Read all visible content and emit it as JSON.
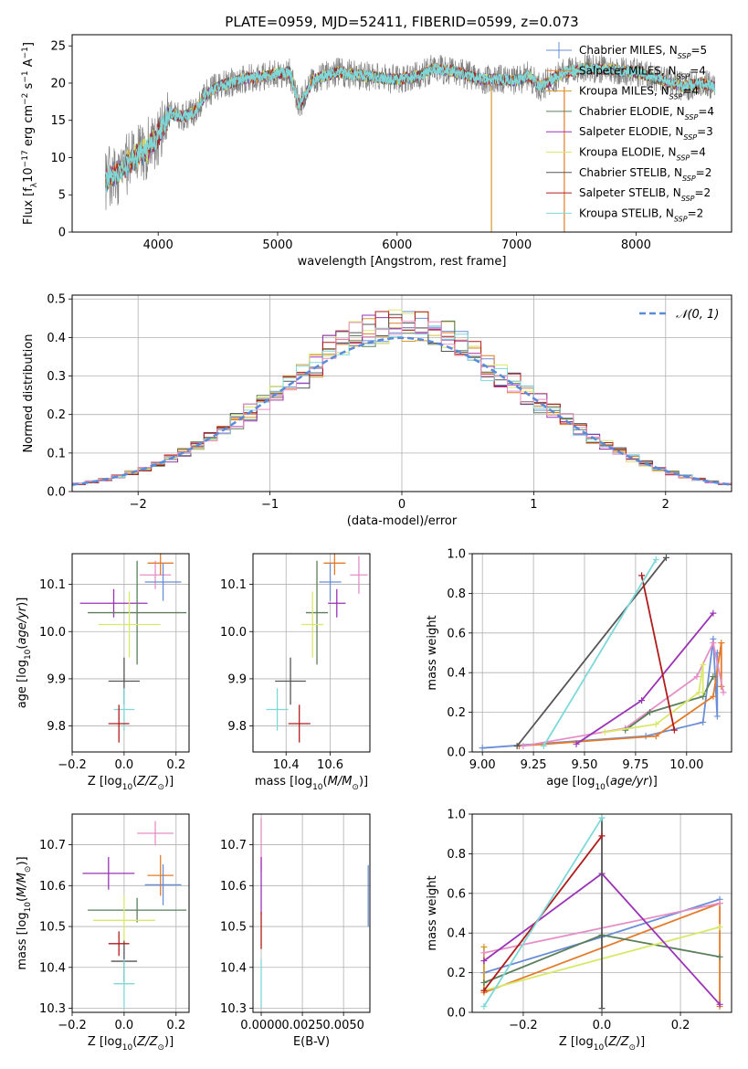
{
  "title": "PLATE=0959, MJD=52411, FIBERID=0599, z=0.073",
  "colors": {
    "Chabrier MILES": "#6a8ed6",
    "Salpeter MILES": "#e37b2a",
    "Kroupa MILES": "#d49a2a",
    "Chabrier ELODIE": "#5a7f5a",
    "Salpeter ELODIE": "#9a33b5",
    "Kroupa ELODIE": "#d8e86a",
    "Chabrier STELIB": "#555555",
    "Salpeter STELIB": "#b01c1c",
    "Kroupa STELIB": "#7fd8d8",
    "pink": "#e58fc6",
    "gaussian": "#5b8ad9"
  },
  "chart_data": [
    {
      "id": "spectrum",
      "type": "line",
      "xlabel": "wavelength [Angstrom, rest frame]",
      "ylabel": "Flux [f_λ 10^-17 erg cm^-2 s^-1 A^-1]",
      "xlim": [
        3280,
        8800
      ],
      "ylim": [
        0,
        26.5
      ],
      "xticks": [
        4000,
        5000,
        6000,
        7000,
        8000
      ],
      "yticks": [
        0,
        5,
        10,
        15,
        20,
        25
      ],
      "continuum_x": [
        3560,
        3700,
        3800,
        3900,
        4000,
        4100,
        4200,
        4300,
        4400,
        4500,
        4700,
        4900,
        5100,
        5180,
        5300,
        5500,
        5800,
        6000,
        6200,
        6300,
        6500,
        6700,
        6850,
        7000,
        7100,
        7200,
        7400,
        7600,
        7800,
        8000,
        8200,
        8400,
        8550,
        8660
      ],
      "continuum_y": [
        7,
        8.5,
        10,
        11,
        13,
        16,
        15.5,
        16,
        18.5,
        19.5,
        20.5,
        21,
        21.5,
        17,
        20.5,
        21.5,
        20.8,
        20.5,
        21,
        22,
        21.5,
        20.5,
        20.5,
        20.3,
        21,
        19.5,
        21.5,
        22,
        21.8,
        21.5,
        20.5,
        19.5,
        20,
        19.5
      ],
      "legend": [
        {
          "label": "Chabrier MILES",
          "n": 5
        },
        {
          "label": "Salpeter MILES",
          "n": 4
        },
        {
          "label": "Kroupa MILES",
          "n": 4
        },
        {
          "label": "Chabrier ELODIE",
          "n": 4
        },
        {
          "label": "Salpeter ELODIE",
          "n": 3
        },
        {
          "label": "Kroupa ELODIE",
          "n": 4
        },
        {
          "label": "Chabrier STELIB",
          "n": 2
        },
        {
          "label": "Salpeter STELIB",
          "n": 2
        },
        {
          "label": "Kroupa STELIB",
          "n": 2
        }
      ],
      "legend_placement": "upper-right"
    },
    {
      "id": "residuals",
      "type": "line",
      "xlabel": "(data-model)/error",
      "ylabel": "Normed distribution",
      "xlim": [
        -2.5,
        2.5
      ],
      "ylim": [
        0,
        0.51
      ],
      "xticks": [
        -2,
        -1,
        0,
        1,
        2
      ],
      "yticks": [
        0.0,
        0.1,
        0.2,
        0.3,
        0.4,
        0.5
      ],
      "grid": true,
      "bin_width": 0.1,
      "gaussian_label": "𝒩(0, 1)",
      "legend_placement": "upper-right"
    },
    {
      "id": "age_vs_Z",
      "type": "scatter",
      "xlabel": "Z [log10(Z/Z⊙)]",
      "ylabel": "age [log10(age/yr)]",
      "xlim": [
        -0.2,
        0.25
      ],
      "ylim": [
        9.745,
        10.165
      ],
      "xticks": [
        -0.2,
        0.0,
        0.2
      ],
      "yticks": [
        9.8,
        9.9,
        10.0,
        10.1
      ],
      "grid": true,
      "points": [
        {
          "model": "Salpeter ELODIE",
          "x": -0.04,
          "y": 10.06,
          "xerr": 0.13,
          "yerr": 0.03
        },
        {
          "model": "Chabrier ELODIE",
          "x": 0.05,
          "y": 10.04,
          "xerr": 0.19,
          "yerr": 0.11
        },
        {
          "model": "Kroupa ELODIE",
          "x": 0.02,
          "y": 10.015,
          "xerr": 0.12,
          "yerr": 0.07
        },
        {
          "model": "Chabrier STELIB",
          "x": 0.0,
          "y": 9.895,
          "xerr": 0.06,
          "yerr": 0.05
        },
        {
          "model": "Kroupa STELIB",
          "x": 0.0,
          "y": 9.835,
          "xerr": 0.04,
          "yerr": 0.045
        },
        {
          "model": "Salpeter STELIB",
          "x": -0.02,
          "y": 9.805,
          "xerr": 0.04,
          "yerr": 0.04
        },
        {
          "model": "pink",
          "x": 0.12,
          "y": 10.12,
          "xerr": 0.06,
          "yerr": 0.03
        },
        {
          "model": "Salpeter MILES",
          "x": 0.14,
          "y": 10.145,
          "xerr": 0.05,
          "yerr": 0.025
        },
        {
          "model": "Chabrier MILES",
          "x": 0.15,
          "y": 10.105,
          "xerr": 0.07,
          "yerr": 0.04
        }
      ]
    },
    {
      "id": "age_vs_mass",
      "type": "scatter",
      "xlabel": "mass [log10(M/M⊙)]",
      "ylabel": "",
      "xlim": [
        10.25,
        10.78
      ],
      "ylim": [
        9.745,
        10.165
      ],
      "xticks": [
        10.4,
        10.6
      ],
      "yticks": [
        9.8,
        9.9,
        10.0,
        10.1
      ],
      "grid": true,
      "points": [
        {
          "model": "Salpeter ELODIE",
          "x": 10.63,
          "y": 10.06,
          "xerr": 0.04,
          "yerr": 0.03
        },
        {
          "model": "Chabrier ELODIE",
          "x": 10.54,
          "y": 10.04,
          "xerr": 0.05,
          "yerr": 0.11
        },
        {
          "model": "Kroupa ELODIE",
          "x": 10.52,
          "y": 10.015,
          "xerr": 0.05,
          "yerr": 0.07
        },
        {
          "model": "Chabrier STELIB",
          "x": 10.42,
          "y": 9.895,
          "xerr": 0.07,
          "yerr": 0.05
        },
        {
          "model": "Kroupa STELIB",
          "x": 10.36,
          "y": 9.835,
          "xerr": 0.05,
          "yerr": 0.045
        },
        {
          "model": "Salpeter STELIB",
          "x": 10.46,
          "y": 9.805,
          "xerr": 0.05,
          "yerr": 0.04
        },
        {
          "model": "pink",
          "x": 10.73,
          "y": 10.12,
          "xerr": 0.04,
          "yerr": 0.04
        },
        {
          "model": "Salpeter MILES",
          "x": 10.62,
          "y": 10.145,
          "xerr": 0.05,
          "yerr": 0.025
        },
        {
          "model": "Chabrier MILES",
          "x": 10.6,
          "y": 10.105,
          "xerr": 0.05,
          "yerr": 0.04
        }
      ]
    },
    {
      "id": "mass_weight_vs_age",
      "type": "line",
      "xlabel": "age [log10(age/yr)]",
      "ylabel": "mass weight",
      "xlim": [
        8.95,
        10.22
      ],
      "ylim": [
        0,
        1.0
      ],
      "xticks": [
        9.0,
        9.25,
        9.5,
        9.75,
        10.0
      ],
      "yticks": [
        0.0,
        0.2,
        0.4,
        0.6,
        0.8,
        1.0
      ],
      "grid": true,
      "series": [
        {
          "model": "Chabrier MILES",
          "x": [
            9.0,
            9.8,
            10.08,
            10.13,
            10.15,
            10.15
          ],
          "y": [
            0.02,
            0.08,
            0.15,
            0.57,
            0.18,
            0.5
          ]
        },
        {
          "model": "Salpeter MILES",
          "x": [
            9.18,
            9.85,
            10.13,
            10.17,
            10.17
          ],
          "y": [
            0.03,
            0.08,
            0.28,
            0.55,
            0.33
          ]
        },
        {
          "model": "pink",
          "x": [
            9.2,
            9.7,
            10.05,
            10.13,
            10.18
          ],
          "y": [
            0.03,
            0.12,
            0.38,
            0.55,
            0.3
          ]
        },
        {
          "model": "Chabrier ELODIE",
          "x": [
            9.7,
            9.82,
            10.08,
            10.13
          ],
          "y": [
            0.11,
            0.2,
            0.28,
            0.38
          ]
        },
        {
          "model": "Kroupa ELODIE",
          "x": [
            9.6,
            9.85,
            10.06,
            10.08,
            10.08
          ],
          "y": [
            0.1,
            0.14,
            0.3,
            0.44,
            0.3
          ]
        },
        {
          "model": "Salpeter ELODIE",
          "x": [
            9.46,
            9.78,
            10.13
          ],
          "y": [
            0.04,
            0.26,
            0.7
          ]
        },
        {
          "model": "Chabrier STELIB",
          "x": [
            9.17,
            9.9
          ],
          "y": [
            0.03,
            0.98
          ]
        },
        {
          "model": "Salpeter STELIB",
          "x": [
            9.78,
            9.94
          ],
          "y": [
            0.89,
            0.11
          ]
        },
        {
          "model": "Kroupa STELIB",
          "x": [
            9.3,
            9.85
          ],
          "y": [
            0.03,
            0.97
          ]
        }
      ]
    },
    {
      "id": "mass_vs_Z",
      "type": "scatter",
      "xlabel": "Z [log10(Z/Z⊙)]",
      "ylabel": "mass [log10(M/M⊙)]",
      "xlim": [
        -0.2,
        0.25
      ],
      "ylim": [
        10.29,
        10.775
      ],
      "xticks": [
        -0.2,
        0.0,
        0.2
      ],
      "yticks": [
        10.3,
        10.4,
        10.5,
        10.6,
        10.7
      ],
      "grid": true,
      "points": [
        {
          "model": "Salpeter ELODIE",
          "x": -0.06,
          "y": 10.63,
          "xerr": 0.1,
          "yerr": 0.04
        },
        {
          "model": "Chabrier ELODIE",
          "x": 0.05,
          "y": 10.54,
          "xerr": 0.19,
          "yerr": 0.03
        },
        {
          "model": "Kroupa ELODIE",
          "x": 0.0,
          "y": 10.515,
          "xerr": 0.12,
          "yerr": 0.06
        },
        {
          "model": "Chabrier STELIB",
          "x": 0.0,
          "y": 10.415,
          "xerr": 0.05,
          "yerr": 0.05
        },
        {
          "model": "Kroupa STELIB",
          "x": 0.0,
          "y": 10.36,
          "xerr": 0.04,
          "yerr": 0.06
        },
        {
          "model": "Salpeter STELIB",
          "x": -0.02,
          "y": 10.458,
          "xerr": 0.04,
          "yerr": 0.03
        },
        {
          "model": "pink",
          "x": 0.12,
          "y": 10.728,
          "xerr": 0.07,
          "yerr": 0.03
        },
        {
          "model": "Salpeter MILES",
          "x": 0.14,
          "y": 10.625,
          "xerr": 0.05,
          "yerr": 0.05
        },
        {
          "model": "Chabrier MILES",
          "x": 0.15,
          "y": 10.602,
          "xerr": 0.07,
          "yerr": 0.05
        }
      ]
    },
    {
      "id": "mass_vs_ebv",
      "type": "scatter",
      "xlabel": "E(B-V)",
      "ylabel": "",
      "xlim": [
        -0.0005,
        0.0066
      ],
      "ylim": [
        10.29,
        10.775
      ],
      "xticks": [
        0.0,
        0.0025,
        0.005
      ],
      "xticklabels": [
        "0.0000",
        "0.0025",
        "0.0050"
      ],
      "yticks": [
        10.3,
        10.4,
        10.5,
        10.6,
        10.7
      ],
      "grid": true,
      "points": [
        {
          "model": "pink",
          "x": 0.0,
          "y": 10.7,
          "yerr": 0.065
        },
        {
          "model": "Salpeter ELODIE",
          "x": 0.0,
          "y": 10.6,
          "yerr": 0.07
        },
        {
          "model": "Salpeter STELIB",
          "x": 0.0,
          "y": 10.49,
          "yerr": 0.045
        },
        {
          "model": "Kroupa STELIB",
          "x": 0.0,
          "y": 10.36,
          "yerr": 0.06
        },
        {
          "model": "Chabrier MILES",
          "x": 0.0065,
          "y": 10.575,
          "yerr": 0.075
        }
      ]
    },
    {
      "id": "mass_weight_vs_Z",
      "type": "line",
      "xlabel": "Z [log10(Z/Z⊙)]",
      "ylabel": "mass weight",
      "xlim": [
        -0.33,
        0.33
      ],
      "ylim": [
        0,
        1.0
      ],
      "xticks": [
        -0.2,
        0.0,
        0.2
      ],
      "yticks": [
        0.0,
        0.2,
        0.4,
        0.6,
        0.8,
        1.0
      ],
      "grid": true,
      "series": [
        {
          "model": "Chabrier MILES",
          "x": [
            -0.3,
            0.0,
            0.3
          ],
          "y": [
            0.2,
            0.38,
            0.57
          ]
        },
        {
          "model": "Salpeter MILES",
          "x": [
            -0.3,
            0.3,
            0.3
          ],
          "y": [
            0.1,
            0.55,
            0.03
          ]
        },
        {
          "model": "Kroupa MILES",
          "x": [
            -0.3,
            -0.3
          ],
          "y": [
            0.33,
            0.11
          ]
        },
        {
          "model": "pink",
          "x": [
            -0.3,
            0.3
          ],
          "y": [
            0.3,
            0.55
          ]
        },
        {
          "model": "Chabrier ELODIE",
          "x": [
            -0.3,
            0.0,
            0.3
          ],
          "y": [
            0.15,
            0.39,
            0.28
          ]
        },
        {
          "model": "Kroupa ELODIE",
          "x": [
            -0.3,
            0.3
          ],
          "y": [
            0.11,
            0.43
          ]
        },
        {
          "model": "Salpeter ELODIE",
          "x": [
            -0.3,
            0.0,
            0.3
          ],
          "y": [
            0.26,
            0.7,
            0.04
          ]
        },
        {
          "model": "Chabrier STELIB",
          "x": [
            0.0,
            0.0
          ],
          "y": [
            0.98,
            0.02
          ]
        },
        {
          "model": "Salpeter STELIB",
          "x": [
            -0.3,
            0.0
          ],
          "y": [
            0.11,
            0.89
          ]
        },
        {
          "model": "Kroupa STELIB",
          "x": [
            -0.3,
            0.0
          ],
          "y": [
            0.03,
            0.98
          ]
        }
      ]
    }
  ]
}
